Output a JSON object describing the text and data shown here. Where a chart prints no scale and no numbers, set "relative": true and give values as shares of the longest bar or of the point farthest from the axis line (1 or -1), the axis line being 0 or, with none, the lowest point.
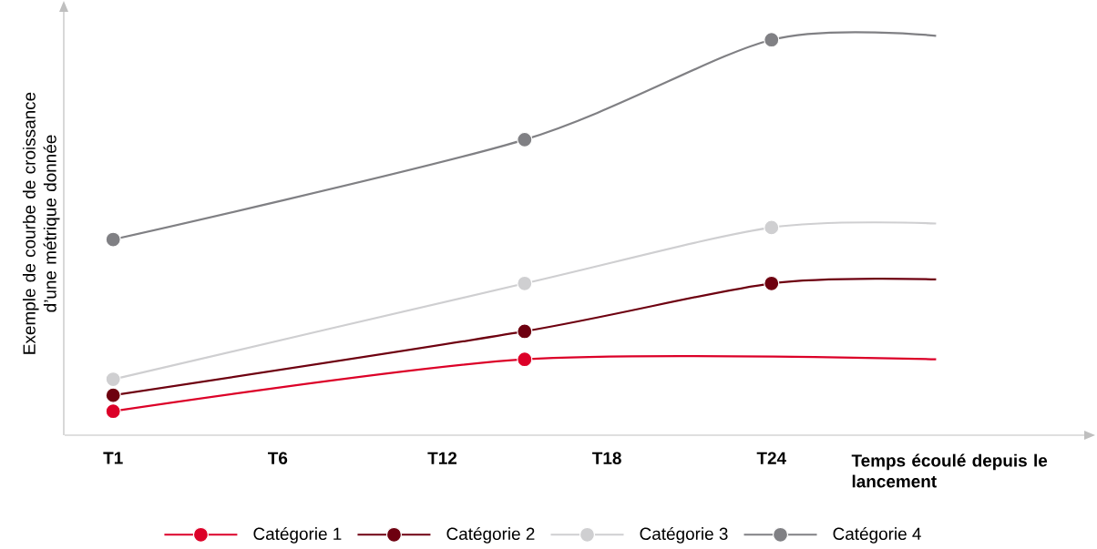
{
  "chart_data": {
    "type": "line",
    "relative": true,
    "marker": "circle",
    "legend": "bottom",
    "xlabel": "Temps écoulé depuis le lancement",
    "ylabel": "Exemple de courbe de croissance d’une métrique donnée",
    "categories": [
      "T1",
      null,
      "T6",
      null,
      "T12",
      null,
      "T18",
      null,
      "T24",
      null,
      null
    ],
    "series": [
      {
        "name": "Catégorie 1",
        "color": "#dc0028",
        "values": [
          0.06,
          null,
          null,
          null,
          null,
          0.19,
          null,
          null,
          null,
          null,
          0.19
        ]
      },
      {
        "name": "Catégorie 2",
        "color": "#6e0010",
        "values": [
          0.1,
          null,
          null,
          null,
          null,
          0.26,
          null,
          null,
          0.38,
          null,
          0.39
        ]
      },
      {
        "name": "Catégorie 3",
        "color": "#cfcfd1",
        "values": [
          0.14,
          null,
          null,
          null,
          null,
          0.38,
          null,
          null,
          0.52,
          null,
          0.53
        ]
      },
      {
        "name": "Catégorie 4",
        "color": "#808084",
        "values": [
          0.49,
          null,
          null,
          null,
          null,
          0.74,
          null,
          null,
          0.99,
          null,
          1.0
        ]
      }
    ]
  }
}
